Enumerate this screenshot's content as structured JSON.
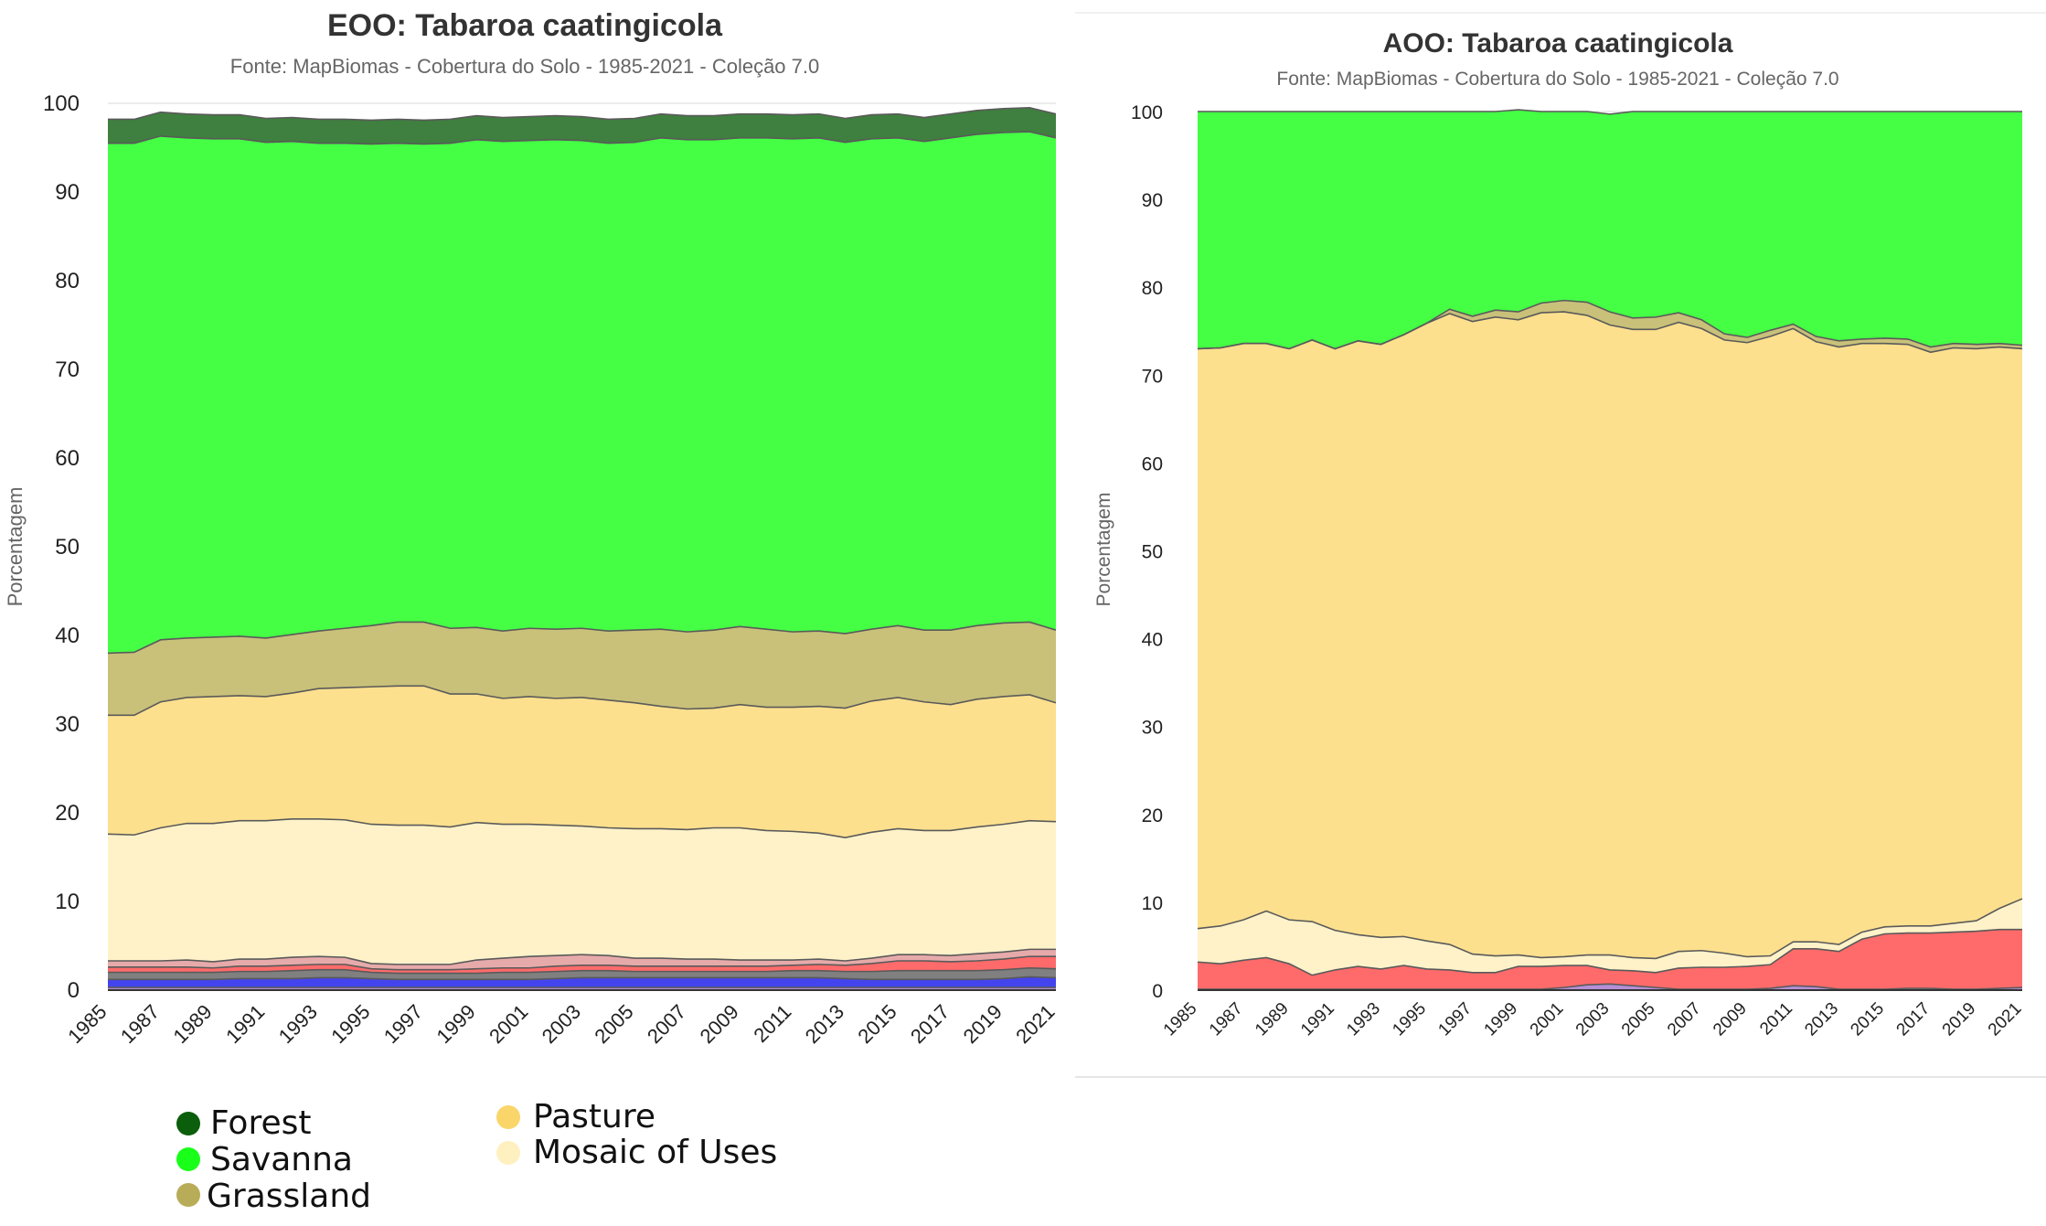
{
  "colors": {
    "forest": "#3f7f3f",
    "savanna": "#44ff44",
    "grassland": "#c9c07a",
    "pasture": "#fde08e",
    "mosaic": "#fff2c9",
    "red": "#ff6b6b",
    "pink": "#e7aaaa",
    "gray": "#808080",
    "blue": "#4444ee",
    "purple": "#b58fd6",
    "line": "#5a5a5a",
    "legend_forest": "#0b5e0b",
    "legend_savanna": "#1aff1a",
    "legend_grassland": "#b8ac58",
    "legend_pasture": "#fad56a",
    "legend_mosaic": "#fff0c0"
  },
  "legend": {
    "items": [
      {
        "label": "Forest",
        "color_key": "legend_forest"
      },
      {
        "label": "Savanna",
        "color_key": "legend_savanna"
      },
      {
        "label": "Grassland",
        "color_key": "legend_grassland"
      },
      {
        "label": "Pasture",
        "color_key": "legend_pasture"
      },
      {
        "label": "Mosaic of Uses",
        "color_key": "legend_mosaic"
      }
    ]
  },
  "chart_data": [
    {
      "type": "area",
      "stacked": true,
      "title": "EOO: Tabaroa caatingicola",
      "subtitle": "Fonte: MapBiomas - Cobertura do Solo - 1985-2021 - Coleção 7.0",
      "ylabel": "Porcentagem",
      "xlabel": "",
      "ylim": [
        0,
        100
      ],
      "yticks": [
        0,
        10,
        20,
        30,
        40,
        50,
        60,
        70,
        80,
        90,
        100
      ],
      "x": [
        1985,
        1986,
        1987,
        1988,
        1989,
        1990,
        1991,
        1992,
        1993,
        1994,
        1995,
        1996,
        1997,
        1998,
        1999,
        2000,
        2001,
        2002,
        2003,
        2004,
        2005,
        2006,
        2007,
        2008,
        2009,
        2010,
        2011,
        2012,
        2013,
        2014,
        2015,
        2016,
        2017,
        2018,
        2019,
        2020,
        2021
      ],
      "xtick_labels": [
        1985,
        1987,
        1989,
        1991,
        1993,
        1995,
        1997,
        1999,
        2001,
        2003,
        2005,
        2007,
        2009,
        2011,
        2013,
        2015,
        2017,
        2019,
        2021
      ],
      "grid": true,
      "series_order_bottom_to_top": [
        "purple",
        "blue",
        "gray",
        "red",
        "pink",
        "mosaic",
        "pasture",
        "grassland",
        "savanna",
        "forest"
      ],
      "series": [
        {
          "key": "purple",
          "values": [
            0.3,
            0.3,
            0.3,
            0.3,
            0.3,
            0.3,
            0.3,
            0.3,
            0.3,
            0.3,
            0.3,
            0.3,
            0.3,
            0.3,
            0.3,
            0.3,
            0.3,
            0.3,
            0.3,
            0.3,
            0.3,
            0.3,
            0.3,
            0.3,
            0.3,
            0.3,
            0.3,
            0.3,
            0.3,
            0.3,
            0.3,
            0.3,
            0.3,
            0.3,
            0.3,
            0.3,
            0.3
          ]
        },
        {
          "key": "blue",
          "values": [
            0.9,
            0.9,
            0.9,
            0.9,
            0.9,
            1.0,
            1.0,
            1.0,
            1.1,
            1.1,
            1.0,
            0.9,
            0.9,
            0.9,
            0.9,
            0.9,
            0.9,
            1.0,
            1.1,
            1.1,
            1.1,
            1.1,
            1.1,
            1.1,
            1.1,
            1.1,
            1.1,
            1.1,
            1.0,
            0.9,
            0.9,
            0.9,
            0.9,
            0.9,
            1.0,
            1.2,
            1.1
          ]
        },
        {
          "key": "gray",
          "values": [
            0.8,
            0.8,
            0.8,
            0.8,
            0.8,
            0.8,
            0.8,
            0.9,
            0.9,
            0.9,
            0.7,
            0.7,
            0.7,
            0.7,
            0.7,
            0.8,
            0.8,
            0.8,
            0.8,
            0.8,
            0.7,
            0.7,
            0.7,
            0.7,
            0.7,
            0.7,
            0.8,
            0.8,
            0.8,
            0.9,
            1.0,
            1.0,
            1.0,
            1.0,
            1.0,
            1.0,
            1.0
          ]
        },
        {
          "key": "red",
          "values": [
            0.6,
            0.6,
            0.6,
            0.6,
            0.5,
            0.6,
            0.6,
            0.6,
            0.6,
            0.6,
            0.4,
            0.4,
            0.4,
            0.4,
            0.5,
            0.5,
            0.5,
            0.6,
            0.6,
            0.6,
            0.6,
            0.6,
            0.6,
            0.6,
            0.6,
            0.6,
            0.6,
            0.7,
            0.7,
            0.9,
            1.1,
            1.1,
            1.0,
            1.1,
            1.2,
            1.3,
            1.4
          ]
        },
        {
          "key": "pink",
          "values": [
            0.7,
            0.7,
            0.7,
            0.8,
            0.7,
            0.8,
            0.8,
            0.9,
            0.9,
            0.8,
            0.6,
            0.6,
            0.6,
            0.6,
            1.0,
            1.1,
            1.3,
            1.2,
            1.2,
            1.1,
            0.9,
            0.9,
            0.8,
            0.8,
            0.7,
            0.7,
            0.6,
            0.6,
            0.5,
            0.6,
            0.7,
            0.7,
            0.7,
            0.8,
            0.8,
            0.8,
            0.8
          ]
        },
        {
          "key": "mosaic",
          "values": [
            14.3,
            14.2,
            15.0,
            15.4,
            15.6,
            15.6,
            15.6,
            15.6,
            15.5,
            15.5,
            15.7,
            15.7,
            15.7,
            15.5,
            15.5,
            15.1,
            14.9,
            14.7,
            14.5,
            14.4,
            14.6,
            14.6,
            14.6,
            14.8,
            14.9,
            14.6,
            14.5,
            14.2,
            13.9,
            14.2,
            14.2,
            14.0,
            14.1,
            14.3,
            14.4,
            14.5,
            14.4
          ]
        },
        {
          "key": "pasture",
          "values": [
            13.4,
            13.5,
            14.2,
            14.2,
            14.3,
            14.1,
            14.0,
            14.2,
            14.7,
            14.9,
            15.5,
            15.7,
            15.7,
            15.0,
            14.5,
            14.2,
            14.4,
            14.3,
            14.5,
            14.4,
            14.2,
            13.8,
            13.6,
            13.5,
            13.9,
            13.9,
            14.0,
            14.3,
            14.6,
            14.8,
            14.8,
            14.5,
            14.2,
            14.4,
            14.4,
            14.2,
            13.4
          ]
        },
        {
          "key": "grassland",
          "values": [
            7.0,
            7.1,
            7.0,
            6.7,
            6.7,
            6.7,
            6.6,
            6.6,
            6.5,
            6.7,
            6.9,
            7.2,
            7.2,
            7.4,
            7.5,
            7.6,
            7.7,
            7.8,
            7.8,
            7.8,
            8.2,
            8.7,
            8.7,
            8.8,
            8.8,
            8.8,
            8.5,
            8.5,
            8.4,
            8.1,
            8.1,
            8.1,
            8.4,
            8.3,
            8.3,
            8.2,
            8.2
          ]
        },
        {
          "key": "savanna",
          "values": [
            57.5,
            57.4,
            56.8,
            56.4,
            56.2,
            56.1,
            55.9,
            55.6,
            55.0,
            54.7,
            54.3,
            54.0,
            53.9,
            54.7,
            55.0,
            55.2,
            55.0,
            55.2,
            55.0,
            55.0,
            55.0,
            55.4,
            55.5,
            55.3,
            55.1,
            55.4,
            55.6,
            55.6,
            55.4,
            55.3,
            55.0,
            55.1,
            55.5,
            55.4,
            55.3,
            55.3,
            55.5
          ]
        },
        {
          "key": "forest",
          "values": [
            2.7,
            2.7,
            2.7,
            2.7,
            2.7,
            2.7,
            2.7,
            2.7,
            2.7,
            2.7,
            2.7,
            2.7,
            2.7,
            2.7,
            2.7,
            2.7,
            2.7,
            2.7,
            2.7,
            2.7,
            2.7,
            2.7,
            2.7,
            2.7,
            2.7,
            2.7,
            2.7,
            2.7,
            2.7,
            2.7,
            2.7,
            2.7,
            2.7,
            2.7,
            2.7,
            2.7,
            2.7
          ]
        }
      ]
    },
    {
      "type": "area",
      "stacked": true,
      "title": "AOO: Tabaroa caatingicola",
      "subtitle": "Fonte: MapBiomas - Cobertura do Solo - 1985-2021 - Coleção 7.0",
      "ylabel": "Porcentagem",
      "xlabel": "",
      "ylim": [
        0,
        100
      ],
      "yticks": [
        0,
        10,
        20,
        30,
        40,
        50,
        60,
        70,
        80,
        90,
        100
      ],
      "x": [
        1985,
        1986,
        1987,
        1988,
        1989,
        1990,
        1991,
        1992,
        1993,
        1994,
        1995,
        1996,
        1997,
        1998,
        1999,
        2000,
        2001,
        2002,
        2003,
        2004,
        2005,
        2006,
        2007,
        2008,
        2009,
        2010,
        2011,
        2012,
        2013,
        2014,
        2015,
        2016,
        2017,
        2018,
        2019,
        2020,
        2021
      ],
      "xtick_labels": [
        1985,
        1987,
        1989,
        1991,
        1993,
        1995,
        1997,
        1999,
        2001,
        2003,
        2005,
        2007,
        2009,
        2011,
        2013,
        2015,
        2017,
        2019,
        2021
      ],
      "grid": true,
      "series_order_bottom_to_top": [
        "purple",
        "red",
        "mosaic",
        "pasture",
        "grassland",
        "savanna"
      ],
      "series": [
        {
          "key": "purple",
          "values": [
            0.1,
            0.1,
            0.1,
            0.1,
            0.1,
            0.1,
            0.1,
            0.1,
            0.1,
            0.1,
            0.1,
            0.1,
            0.1,
            0.1,
            0.1,
            0.1,
            0.3,
            0.6,
            0.7,
            0.5,
            0.3,
            0.1,
            0.1,
            0.1,
            0.1,
            0.2,
            0.5,
            0.4,
            0.1,
            0.1,
            0.1,
            0.2,
            0.2,
            0.1,
            0.1,
            0.2,
            0.3
          ]
        },
        {
          "key": "red",
          "values": [
            3.1,
            2.9,
            3.3,
            3.6,
            2.9,
            1.6,
            2.2,
            2.6,
            2.3,
            2.7,
            2.3,
            2.2,
            1.9,
            1.9,
            2.6,
            2.6,
            2.5,
            2.2,
            1.6,
            1.7,
            1.7,
            2.4,
            2.5,
            2.5,
            2.6,
            2.7,
            4.2,
            4.3,
            4.3,
            5.7,
            6.3,
            6.3,
            6.3,
            6.5,
            6.6,
            6.7,
            6.6
          ]
        },
        {
          "key": "mosaic",
          "values": [
            3.8,
            4.3,
            4.6,
            5.3,
            5.0,
            6.1,
            4.5,
            3.6,
            3.6,
            3.3,
            3.2,
            2.9,
            2.1,
            1.9,
            1.3,
            1.0,
            1.0,
            1.2,
            1.7,
            1.5,
            1.6,
            1.9,
            1.9,
            1.6,
            1.1,
            1.0,
            0.8,
            0.8,
            0.8,
            0.8,
            0.8,
            0.8,
            0.8,
            1.0,
            1.2,
            2.4,
            3.5
          ]
        },
        {
          "key": "pasture",
          "values": [
            66.0,
            65.8,
            65.6,
            64.6,
            65.0,
            66.2,
            66.2,
            67.6,
            67.5,
            68.5,
            70.3,
            71.8,
            72.0,
            72.7,
            72.3,
            73.4,
            73.4,
            72.8,
            71.7,
            71.5,
            71.6,
            71.6,
            70.8,
            69.8,
            69.9,
            70.5,
            69.8,
            68.3,
            68.0,
            67.0,
            66.4,
            66.2,
            65.3,
            65.5,
            65.1,
            63.9,
            62.6
          ]
        },
        {
          "key": "grassland",
          "values": [
            0.0,
            0.0,
            0.0,
            0.0,
            0.0,
            0.0,
            0.0,
            0.0,
            0.0,
            0.0,
            0.0,
            0.5,
            0.6,
            0.8,
            0.9,
            1.1,
            1.3,
            1.5,
            1.5,
            1.3,
            1.4,
            1.1,
            1.0,
            0.7,
            0.6,
            0.7,
            0.5,
            0.6,
            0.7,
            0.5,
            0.6,
            0.6,
            0.6,
            0.5,
            0.5,
            0.4,
            0.4
          ]
        },
        {
          "key": "savanna",
          "values": [
            27.0,
            26.9,
            26.4,
            26.4,
            27.0,
            26.0,
            27.0,
            26.1,
            26.5,
            25.4,
            24.1,
            22.5,
            23.3,
            22.6,
            23.0,
            21.8,
            21.5,
            21.7,
            22.5,
            23.5,
            23.4,
            22.9,
            23.7,
            25.3,
            25.7,
            24.9,
            24.2,
            25.6,
            26.1,
            25.9,
            25.8,
            25.9,
            26.8,
            26.4,
            26.5,
            26.4,
            26.6
          ]
        }
      ]
    }
  ]
}
